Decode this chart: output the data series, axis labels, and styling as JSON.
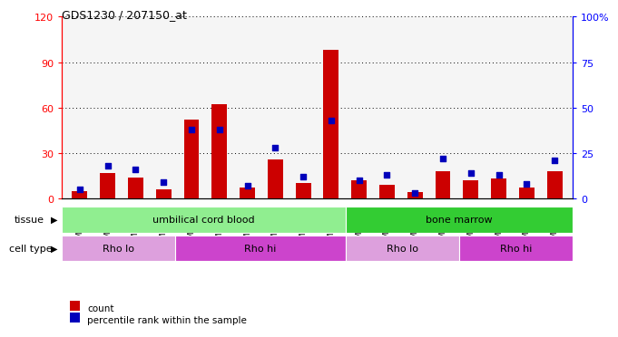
{
  "title": "GDS1230 / 207150_at",
  "samples": [
    "GSM51392",
    "GSM51394",
    "GSM51396",
    "GSM51398",
    "GSM51400",
    "GSM51391",
    "GSM51393",
    "GSM51395",
    "GSM51397",
    "GSM51399",
    "GSM51402",
    "GSM51404",
    "GSM51406",
    "GSM51408",
    "GSM51401",
    "GSM51403",
    "GSM51405",
    "GSM51407"
  ],
  "red_values": [
    5,
    17,
    14,
    6,
    52,
    62,
    7,
    26,
    10,
    98,
    12,
    9,
    4,
    18,
    12,
    13,
    7,
    18
  ],
  "blue_pct": [
    5,
    18,
    16,
    9,
    38,
    38,
    7,
    28,
    12,
    43,
    10,
    13,
    3,
    22,
    14,
    13,
    8,
    21
  ],
  "ylim_left": [
    0,
    120
  ],
  "ylim_right": [
    0,
    100
  ],
  "yticks_left": [
    0,
    30,
    60,
    90,
    120
  ],
  "yticks_right": [
    0,
    25,
    50,
    75,
    100
  ],
  "ytick_labels_left": [
    "0",
    "30",
    "60",
    "90",
    "120"
  ],
  "ytick_labels_right": [
    "0",
    "25",
    "50",
    "75",
    "100%"
  ],
  "tissue_labels": [
    {
      "text": "umbilical cord blood",
      "start": 0,
      "end": 9,
      "color": "#90EE90"
    },
    {
      "text": "bone marrow",
      "start": 10,
      "end": 17,
      "color": "#33CC33"
    }
  ],
  "cell_type_labels": [
    {
      "text": "Rho lo",
      "start": 0,
      "end": 3,
      "color": "#DDA0DD"
    },
    {
      "text": "Rho hi",
      "start": 4,
      "end": 9,
      "color": "#CC44CC"
    },
    {
      "text": "Rho lo",
      "start": 10,
      "end": 13,
      "color": "#DDA0DD"
    },
    {
      "text": "Rho hi",
      "start": 14,
      "end": 17,
      "color": "#CC44CC"
    }
  ],
  "bar_color": "#CC0000",
  "blue_color": "#0000BB",
  "tissue_arrow_label": "tissue",
  "cell_type_arrow_label": "cell type",
  "legend_count": "count",
  "legend_pct": "percentile rank within the sample",
  "bar_width": 0.55,
  "background_color": "#ffffff"
}
